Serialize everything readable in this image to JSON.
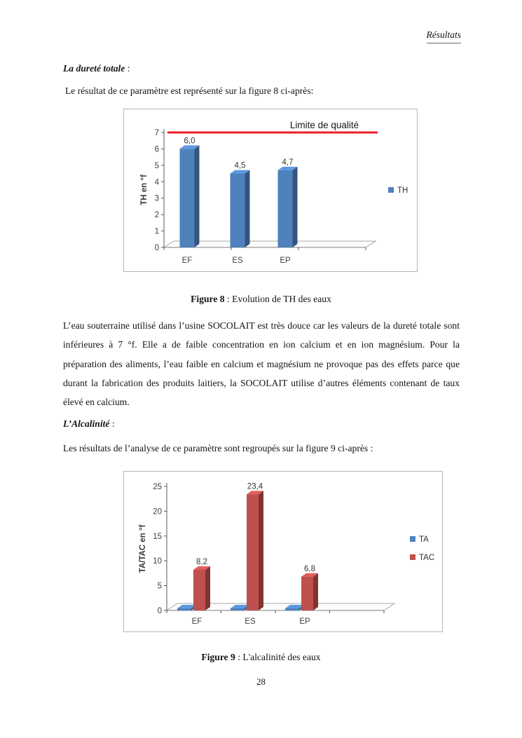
{
  "page": {
    "header": "Résultats",
    "page_number": "28"
  },
  "sections": [
    {
      "heading": "La dureté totale",
      "heading_suffix": " :",
      "intro": "Le résultat de ce paramètre est représenté sur la figure 8 ci-après:",
      "caption_label": "Figure 8",
      "caption_rest": " : Evolution de TH des eaux",
      "body": "L’eau souterraine utilisé dans l’usine SOCOLAIT est très douce car les valeurs de la dureté totale sont inférieures à 7 °f. Elle a de faible concentration en ion calcium et en ion magnésium. Pour la préparation des aliments, l’eau faible en calcium et magnésium ne provoque pas des effets parce que durant la fabrication des produits laitiers, la SOCOLAIT utilise d’autres éléments contenant de taux élevé en calcium."
    },
    {
      "heading": "L’Alcalinité",
      "heading_suffix": " :",
      "intro": "Les résultats de l’analyse de ce paramètre sont regroupés sur la figure 9 ci-après :",
      "caption_label": "Figure 9",
      "caption_rest": " : L'alcalinité des eaux"
    }
  ],
  "chart_data": [
    {
      "type": "bar",
      "style": "3d-column",
      "title": "",
      "categories": [
        "EF",
        "ES",
        "EP"
      ],
      "series": [
        {
          "name": "TH",
          "color": "#4f81bd",
          "values": [
            6.0,
            4.5,
            4.7
          ],
          "point_labels": [
            "6,0",
            "4,5",
            "4,7"
          ]
        }
      ],
      "xlabel": "",
      "ylabel": "TH en °f",
      "ylim": [
        0,
        7
      ],
      "yticks": [
        0,
        1,
        2,
        3,
        4,
        5,
        6,
        7
      ],
      "grid": false,
      "legend_position": "right",
      "annotation": {
        "label": "Limite de qualité",
        "value": 7,
        "color": "#ee1c24"
      }
    },
    {
      "type": "bar",
      "style": "3d-column",
      "title": "",
      "categories": [
        "EF",
        "ES",
        "EP"
      ],
      "series": [
        {
          "name": "TA",
          "color": "#4f81bd",
          "values": [
            0,
            0,
            0
          ],
          "point_labels": [
            "",
            "",
            ""
          ]
        },
        {
          "name": "TAC",
          "color": "#c0504d",
          "values": [
            8.2,
            23.4,
            6.8
          ],
          "point_labels": [
            "8,2",
            "23,4",
            "6,8"
          ]
        }
      ],
      "xlabel": "",
      "ylabel": "TA/TAC en °f",
      "ylim": [
        0,
        25
      ],
      "yticks": [
        0,
        5,
        10,
        15,
        20,
        25
      ],
      "grid": false,
      "legend_position": "right"
    }
  ]
}
